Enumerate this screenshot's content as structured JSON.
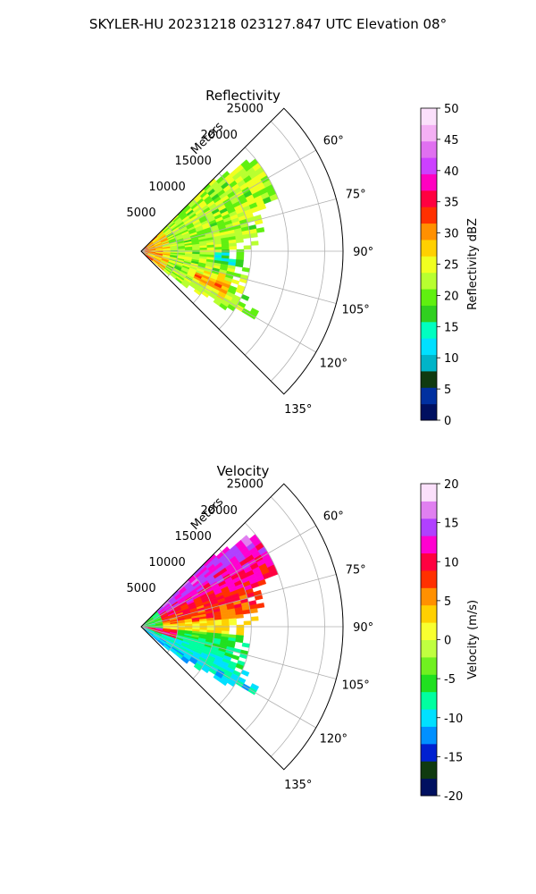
{
  "figure": {
    "title": "SKYLER-HU  20231218  023127.847 UTC Elevation 08°"
  },
  "chart_data": [
    {
      "type": "heatmap",
      "projection": "polar-sector",
      "title": "Reflectivity",
      "rlabel": "Meters",
      "r_ticks": [
        5000,
        10000,
        15000,
        20000,
        25000
      ],
      "r_max": 27500,
      "theta_ticks": [
        "60°",
        "75°",
        "90°",
        "105°",
        "120°",
        "135°"
      ],
      "theta_tick_values": [
        60,
        75,
        90,
        105,
        120,
        135
      ],
      "theta_range": [
        45,
        135
      ],
      "grid": true,
      "colorbar": {
        "label": "Reflectivity dBZ",
        "range": [
          0,
          50
        ],
        "ticks": [
          "0",
          "5",
          "10",
          "15",
          "20",
          "25",
          "30",
          "35",
          "40",
          "45",
          "50"
        ],
        "colors": [
          "#001060",
          "#0030a0",
          "#103a10",
          "#00b4c8",
          "#00e0ff",
          "#00ffc0",
          "#30d020",
          "#60f010",
          "#b8ff30",
          "#f0ff20",
          "#ffd000",
          "#ff9000",
          "#ff3000",
          "#ff0040",
          "#ff00c0",
          "#cc40ff",
          "#e070f0",
          "#f4b0f4",
          "#fbe0fb"
        ]
      },
      "data_description": "Echo fills sector from ~45° to ~128°, range up to ~19000 m; mostly 18–28 dBZ with cores 33–38 dBZ near origin and around 112–118°."
    },
    {
      "type": "heatmap",
      "projection": "polar-sector",
      "title": "Velocity",
      "rlabel": "Meters",
      "r_ticks": [
        5000,
        10000,
        15000,
        20000,
        25000
      ],
      "r_max": 27500,
      "theta_ticks": [
        "60°",
        "75°",
        "90°",
        "105°",
        "120°",
        "135°"
      ],
      "theta_tick_values": [
        60,
        75,
        90,
        105,
        120,
        135
      ],
      "theta_range": [
        45,
        135
      ],
      "grid": true,
      "colorbar": {
        "label": "Velocity (m/s)",
        "range": [
          -20,
          20
        ],
        "ticks": [
          "-20",
          "-15",
          "-10",
          "-5",
          "0",
          "5",
          "10",
          "15",
          "20"
        ],
        "colors": [
          "#001060",
          "#103a10",
          "#0020d0",
          "#0090ff",
          "#00e0ff",
          "#00ffa0",
          "#20e020",
          "#70f020",
          "#c0ff40",
          "#f8ff30",
          "#ffd000",
          "#ff9000",
          "#ff3000",
          "#ff0040",
          "#ff00d0",
          "#b040ff",
          "#e080f0",
          "#fbe0fb"
        ]
      },
      "data_description": "Northern part (45°–85°) outbound 5–15 m/s (orange–magenta); southern part (95°–130°) inbound −5 to −12 m/s (green–cyan); near-zero (yellow) around 90°."
    }
  ]
}
